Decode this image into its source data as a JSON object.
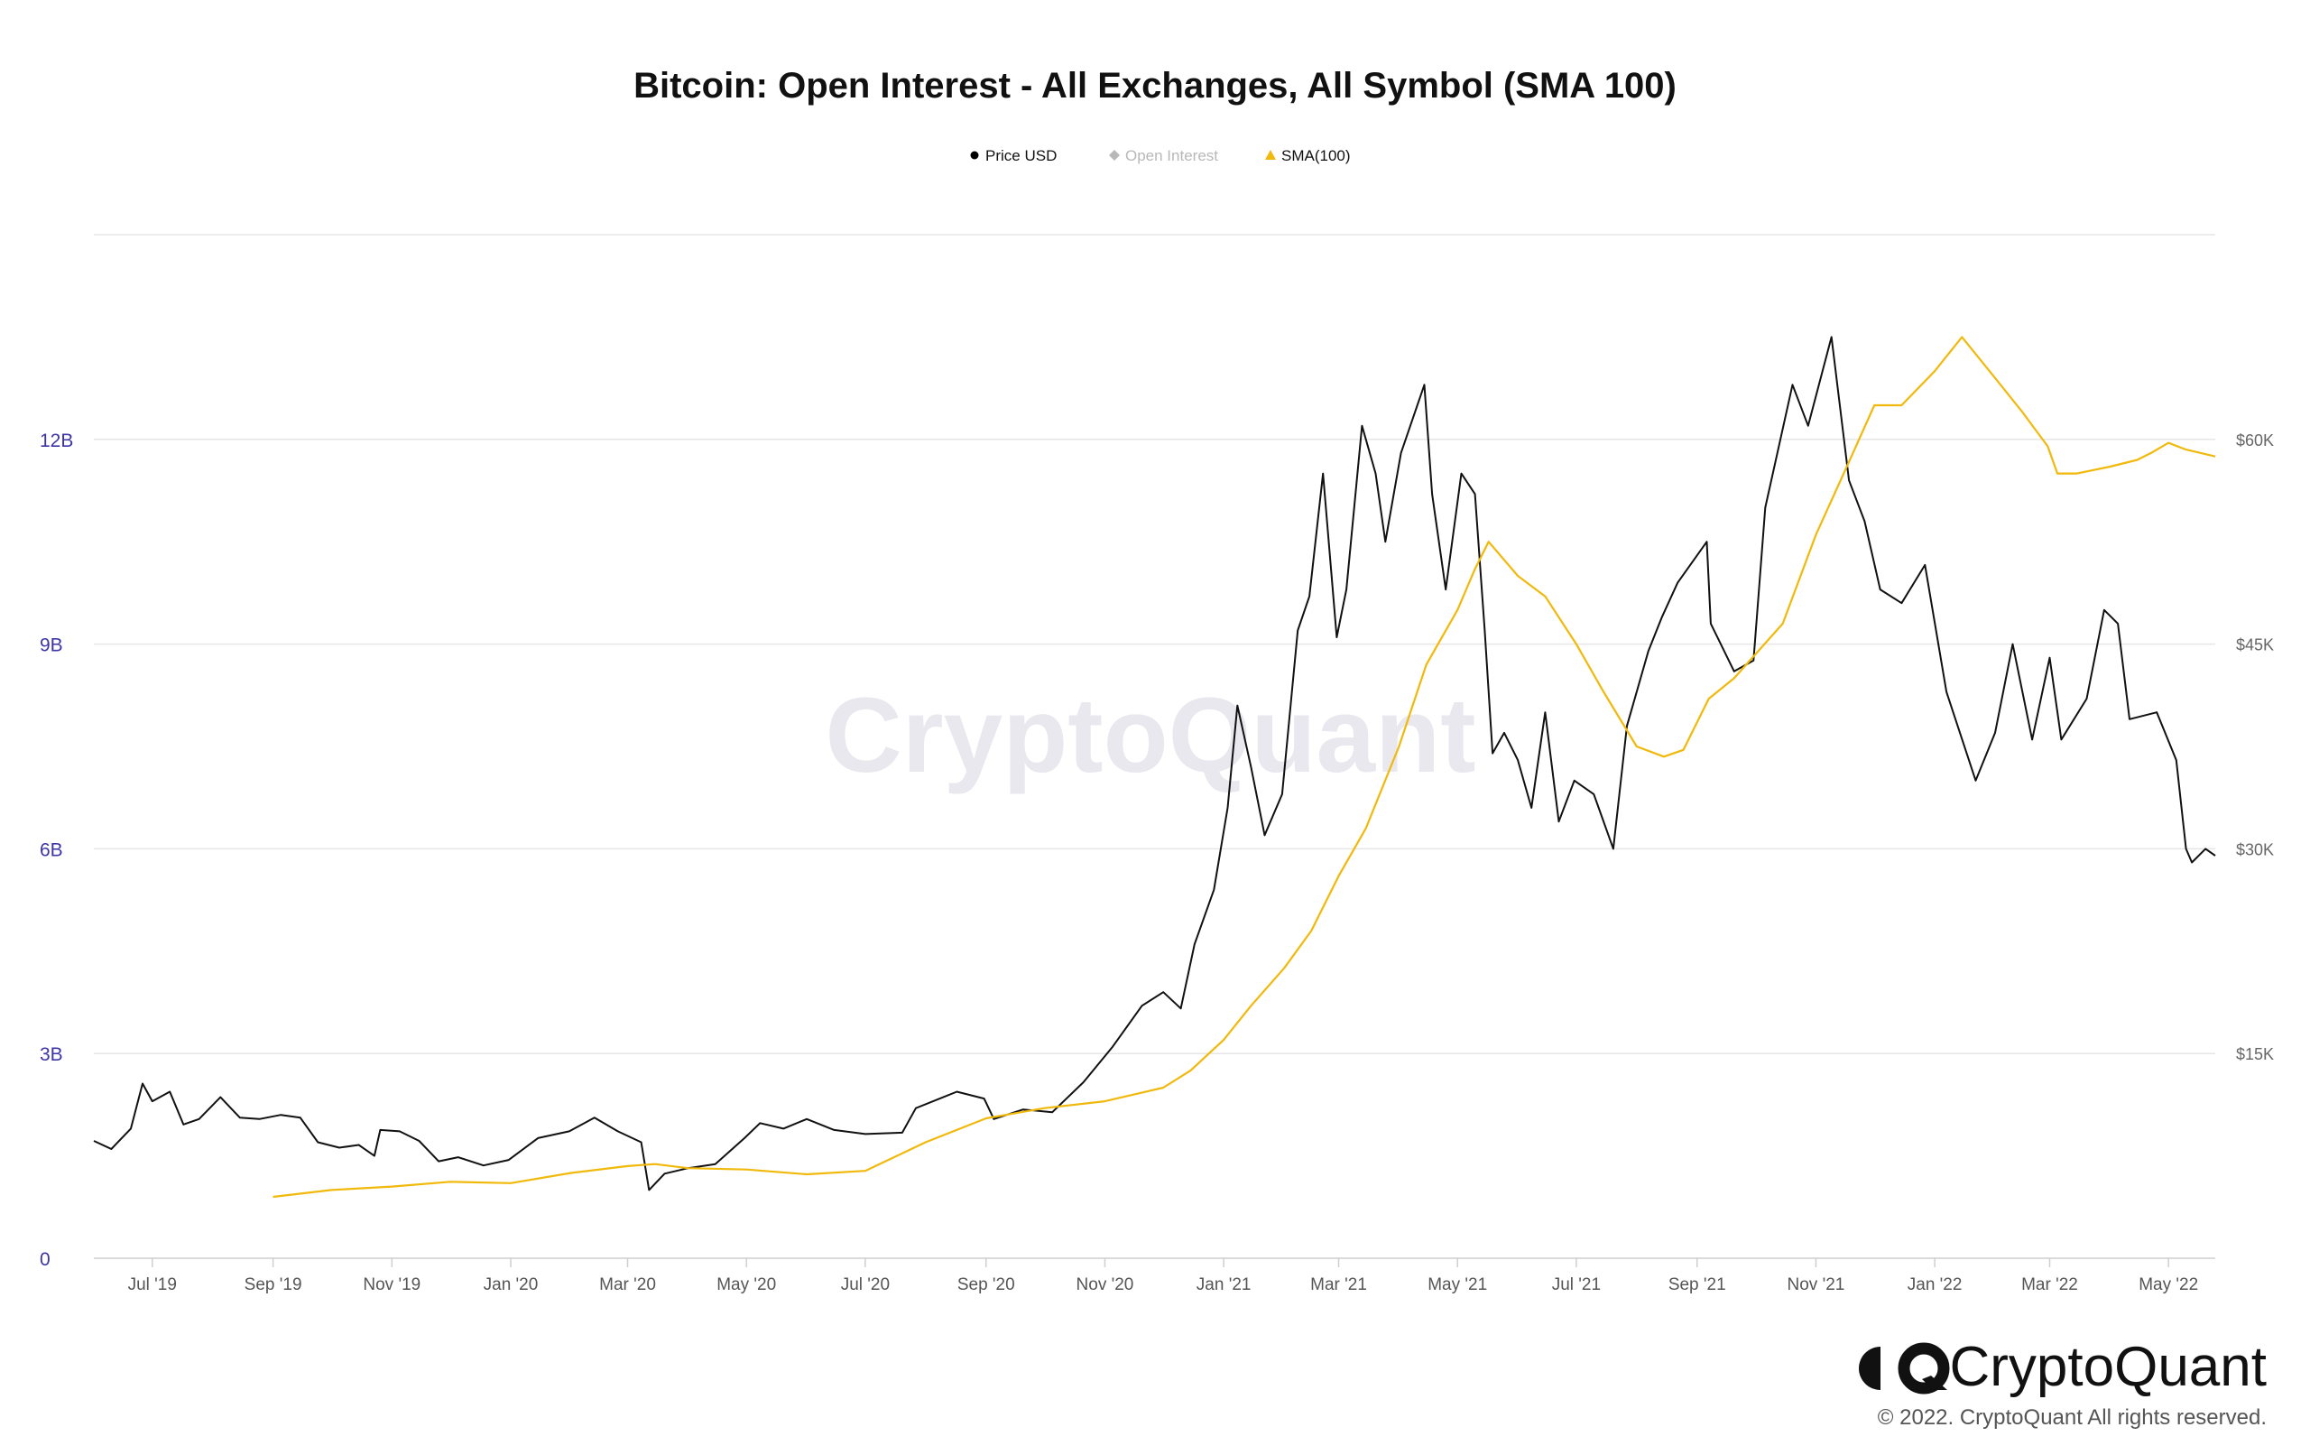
{
  "chart_data": {
    "type": "line",
    "title": "Bitcoin: Open Interest - All Exchanges, All Symbol (SMA 100)",
    "legend": {
      "placement": "top-center",
      "entries": [
        {
          "name": "Price USD",
          "marker": "circle",
          "color": "#000000",
          "active": true
        },
        {
          "name": "Open Interest",
          "marker": "diamond",
          "color": "#b8b8b8",
          "active": false
        },
        {
          "name": "SMA(100)",
          "marker": "triangle",
          "color": "#f0b90b",
          "active": true
        }
      ]
    },
    "grid": true,
    "y_left": {
      "range": [
        0,
        15
      ],
      "ticks": [
        0,
        3,
        6,
        9,
        12
      ],
      "tick_labels": [
        "0",
        "3B",
        "6B",
        "9B",
        "12B"
      ],
      "color": "#3d35a6"
    },
    "y_right": {
      "range": [
        0,
        75000
      ],
      "ticks": [
        15000,
        30000,
        45000,
        60000
      ],
      "tick_labels": [
        "$15K",
        "$30K",
        "$45K",
        "$60K"
      ],
      "color": "#666666"
    },
    "x_axis": {
      "range": [
        "2019-06-01",
        "2022-05-25"
      ],
      "ticks": [
        "2019-07-01",
        "2019-09-01",
        "2019-11-01",
        "2020-01-01",
        "2020-03-01",
        "2020-05-01",
        "2020-07-01",
        "2020-09-01",
        "2020-11-01",
        "2021-01-01",
        "2021-03-01",
        "2021-05-01",
        "2021-07-01",
        "2021-09-01",
        "2021-11-01",
        "2022-01-01",
        "2022-03-01",
        "2022-05-01"
      ],
      "tick_labels": [
        "Jul '19",
        "Sep '19",
        "Nov '19",
        "Jan '20",
        "Mar '20",
        "May '20",
        "Jul '20",
        "Sep '20",
        "Nov '20",
        "Jan '21",
        "Mar '21",
        "May '21",
        "Jul '21",
        "Sep '21",
        "Nov '21",
        "Jan '22",
        "Mar '22",
        "May '22"
      ]
    },
    "series": [
      {
        "name": "Price USD",
        "axis": "right",
        "color": "#111111",
        "points": [
          [
            "2019-06-01",
            8600
          ],
          [
            "2019-06-10",
            8000
          ],
          [
            "2019-06-20",
            9500
          ],
          [
            "2019-06-26",
            12800
          ],
          [
            "2019-07-01",
            11500
          ],
          [
            "2019-07-10",
            12200
          ],
          [
            "2019-07-17",
            9800
          ],
          [
            "2019-07-25",
            10200
          ],
          [
            "2019-08-05",
            11800
          ],
          [
            "2019-08-15",
            10300
          ],
          [
            "2019-08-25",
            10200
          ],
          [
            "2019-09-05",
            10500
          ],
          [
            "2019-09-15",
            10300
          ],
          [
            "2019-09-24",
            8500
          ],
          [
            "2019-10-05",
            8100
          ],
          [
            "2019-10-15",
            8300
          ],
          [
            "2019-10-23",
            7500
          ],
          [
            "2019-10-26",
            9400
          ],
          [
            "2019-11-05",
            9300
          ],
          [
            "2019-11-15",
            8600
          ],
          [
            "2019-11-25",
            7100
          ],
          [
            "2019-12-05",
            7400
          ],
          [
            "2019-12-18",
            6800
          ],
          [
            "2019-12-31",
            7200
          ],
          [
            "2020-01-15",
            8800
          ],
          [
            "2020-01-31",
            9300
          ],
          [
            "2020-02-13",
            10300
          ],
          [
            "2020-02-25",
            9300
          ],
          [
            "2020-03-08",
            8500
          ],
          [
            "2020-03-12",
            5000
          ],
          [
            "2020-03-20",
            6200
          ],
          [
            "2020-04-01",
            6600
          ],
          [
            "2020-04-15",
            6900
          ],
          [
            "2020-04-30",
            8800
          ],
          [
            "2020-05-08",
            9900
          ],
          [
            "2020-05-20",
            9500
          ],
          [
            "2020-06-01",
            10200
          ],
          [
            "2020-06-15",
            9400
          ],
          [
            "2020-07-01",
            9100
          ],
          [
            "2020-07-20",
            9200
          ],
          [
            "2020-07-27",
            11000
          ],
          [
            "2020-08-10",
            11800
          ],
          [
            "2020-08-17",
            12200
          ],
          [
            "2020-08-31",
            11700
          ],
          [
            "2020-09-05",
            10200
          ],
          [
            "2020-09-20",
            10900
          ],
          [
            "2020-10-05",
            10700
          ],
          [
            "2020-10-21",
            12900
          ],
          [
            "2020-11-05",
            15500
          ],
          [
            "2020-11-20",
            18500
          ],
          [
            "2020-12-01",
            19500
          ],
          [
            "2020-12-10",
            18300
          ],
          [
            "2020-12-17",
            23000
          ],
          [
            "2020-12-27",
            27000
          ],
          [
            "2021-01-03",
            33000
          ],
          [
            "2021-01-08",
            40500
          ],
          [
            "2021-01-15",
            36000
          ],
          [
            "2021-01-22",
            31000
          ],
          [
            "2021-01-31",
            34000
          ],
          [
            "2021-02-08",
            46000
          ],
          [
            "2021-02-14",
            48500
          ],
          [
            "2021-02-21",
            57500
          ],
          [
            "2021-02-28",
            45500
          ],
          [
            "2021-03-05",
            49000
          ],
          [
            "2021-03-13",
            61000
          ],
          [
            "2021-03-20",
            57500
          ],
          [
            "2021-03-25",
            52500
          ],
          [
            "2021-04-02",
            59000
          ],
          [
            "2021-04-14",
            64000
          ],
          [
            "2021-04-18",
            56000
          ],
          [
            "2021-04-25",
            49000
          ],
          [
            "2021-05-03",
            57500
          ],
          [
            "2021-05-10",
            56000
          ],
          [
            "2021-05-15",
            46000
          ],
          [
            "2021-05-19",
            37000
          ],
          [
            "2021-05-25",
            38500
          ],
          [
            "2021-06-01",
            36500
          ],
          [
            "2021-06-08",
            33000
          ],
          [
            "2021-06-15",
            40000
          ],
          [
            "2021-06-22",
            32000
          ],
          [
            "2021-06-30",
            35000
          ],
          [
            "2021-07-10",
            34000
          ],
          [
            "2021-07-20",
            30000
          ],
          [
            "2021-07-27",
            39000
          ],
          [
            "2021-08-07",
            44500
          ],
          [
            "2021-08-14",
            47000
          ],
          [
            "2021-08-22",
            49500
          ],
          [
            "2021-09-06",
            52500
          ],
          [
            "2021-09-08",
            46500
          ],
          [
            "2021-09-20",
            43000
          ],
          [
            "2021-09-30",
            43800
          ],
          [
            "2021-10-06",
            55000
          ],
          [
            "2021-10-20",
            64000
          ],
          [
            "2021-10-28",
            61000
          ],
          [
            "2021-11-09",
            67500
          ],
          [
            "2021-11-18",
            57000
          ],
          [
            "2021-11-26",
            54000
          ],
          [
            "2021-12-04",
            49000
          ],
          [
            "2021-12-15",
            48000
          ],
          [
            "2021-12-27",
            50800
          ],
          [
            "2022-01-07",
            41500
          ],
          [
            "2022-01-22",
            35000
          ],
          [
            "2022-02-01",
            38500
          ],
          [
            "2022-02-10",
            45000
          ],
          [
            "2022-02-20",
            38000
          ],
          [
            "2022-03-01",
            44000
          ],
          [
            "2022-03-07",
            38000
          ],
          [
            "2022-03-20",
            41000
          ],
          [
            "2022-03-29",
            47500
          ],
          [
            "2022-04-05",
            46500
          ],
          [
            "2022-04-11",
            39500
          ],
          [
            "2022-04-25",
            40000
          ],
          [
            "2022-05-05",
            36500
          ],
          [
            "2022-05-10",
            30000
          ],
          [
            "2022-05-13",
            29000
          ],
          [
            "2022-05-20",
            30000
          ],
          [
            "2022-05-25",
            29500
          ]
        ]
      },
      {
        "name": "SMA(100)",
        "axis": "left",
        "color": "#f0b90b",
        "points": [
          [
            "2019-09-01",
            0.9
          ],
          [
            "2019-10-01",
            1.0
          ],
          [
            "2019-11-01",
            1.05
          ],
          [
            "2019-12-01",
            1.12
          ],
          [
            "2020-01-01",
            1.1
          ],
          [
            "2020-02-01",
            1.25
          ],
          [
            "2020-03-01",
            1.35
          ],
          [
            "2020-03-15",
            1.38
          ],
          [
            "2020-04-01",
            1.32
          ],
          [
            "2020-05-01",
            1.3
          ],
          [
            "2020-06-01",
            1.23
          ],
          [
            "2020-07-01",
            1.28
          ],
          [
            "2020-08-01",
            1.7
          ],
          [
            "2020-09-01",
            2.05
          ],
          [
            "2020-10-01",
            2.2
          ],
          [
            "2020-11-01",
            2.3
          ],
          [
            "2020-12-01",
            2.5
          ],
          [
            "2020-12-15",
            2.75
          ],
          [
            "2021-01-01",
            3.2
          ],
          [
            "2021-01-15",
            3.7
          ],
          [
            "2021-02-01",
            4.25
          ],
          [
            "2021-02-15",
            4.8
          ],
          [
            "2021-03-01",
            5.6
          ],
          [
            "2021-03-15",
            6.3
          ],
          [
            "2021-04-01",
            7.5
          ],
          [
            "2021-04-15",
            8.7
          ],
          [
            "2021-05-01",
            9.5
          ],
          [
            "2021-05-10",
            10.1
          ],
          [
            "2021-05-17",
            10.5
          ],
          [
            "2021-06-01",
            10.0
          ],
          [
            "2021-06-15",
            9.7
          ],
          [
            "2021-07-01",
            9.0
          ],
          [
            "2021-07-15",
            8.3
          ],
          [
            "2021-08-01",
            7.5
          ],
          [
            "2021-08-15",
            7.35
          ],
          [
            "2021-08-25",
            7.45
          ],
          [
            "2021-09-07",
            8.2
          ],
          [
            "2021-09-20",
            8.5
          ],
          [
            "2021-10-15",
            9.3
          ],
          [
            "2021-11-01",
            10.6
          ],
          [
            "2021-11-20",
            11.8
          ],
          [
            "2021-12-01",
            12.5
          ],
          [
            "2021-12-15",
            12.5
          ],
          [
            "2022-01-01",
            13.0
          ],
          [
            "2022-01-15",
            13.5
          ],
          [
            "2022-02-01",
            12.9
          ],
          [
            "2022-02-15",
            12.4
          ],
          [
            "2022-02-28",
            11.9
          ],
          [
            "2022-03-05",
            11.5
          ],
          [
            "2022-03-15",
            11.5
          ],
          [
            "2022-04-01",
            11.6
          ],
          [
            "2022-04-15",
            11.7
          ],
          [
            "2022-04-22",
            11.8
          ],
          [
            "2022-05-01",
            11.95
          ],
          [
            "2022-05-10",
            11.85
          ],
          [
            "2022-05-25",
            11.75
          ]
        ]
      }
    ],
    "watermark": "CryptoQuant"
  },
  "branding": {
    "logo_text": "CryptoQuant",
    "copyright": "© 2022. CryptoQuant All rights reserved."
  }
}
